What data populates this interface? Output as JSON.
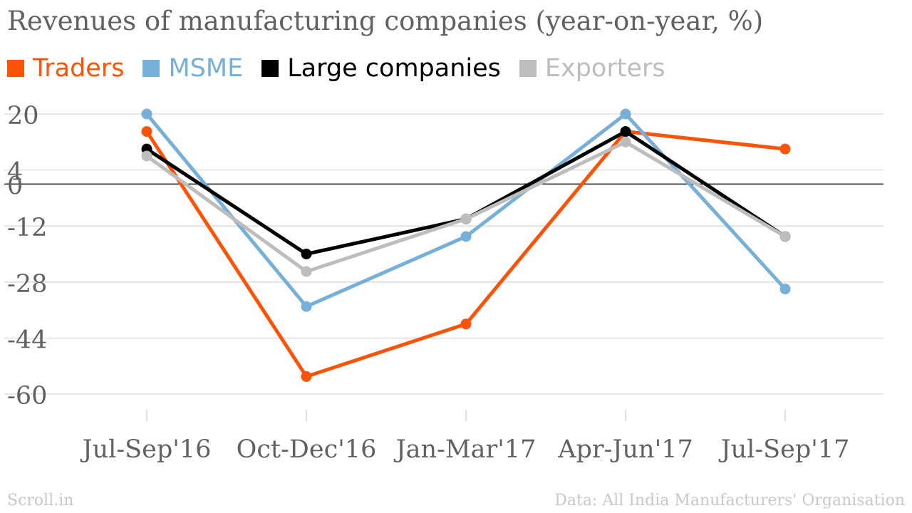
{
  "chart_data": {
    "type": "line",
    "title": "Revenues of manufacturing companies (year-on-year, %)",
    "categories": [
      "Jul-Sep'16",
      "Oct-Dec'16",
      "Jan-Mar'17",
      "Apr-Jun'17",
      "Jul-Sep'17"
    ],
    "series": [
      {
        "name": "Traders",
        "color": "#fc5308",
        "values": [
          15,
          -55,
          -40,
          15,
          10
        ]
      },
      {
        "name": "MSME",
        "color": "#76b0d8",
        "values": [
          20,
          -35,
          -15,
          20,
          -30
        ]
      },
      {
        "name": "Large companies",
        "color": "#000000",
        "values": [
          10,
          -20,
          -10,
          15,
          -15
        ]
      },
      {
        "name": "Exporters",
        "color": "#bdbdbd",
        "values": [
          8,
          -25,
          -10,
          12,
          -15
        ]
      }
    ],
    "yticks": [
      "20",
      "4",
      "0",
      "-12",
      "-28",
      "-44",
      "-60"
    ],
    "ylim": [
      -60,
      20
    ],
    "grid": true,
    "legend_position": "top-left"
  },
  "footer": {
    "source_left": "Scroll.in",
    "source_right": "Data: All India Manufacturers' Organisation"
  }
}
